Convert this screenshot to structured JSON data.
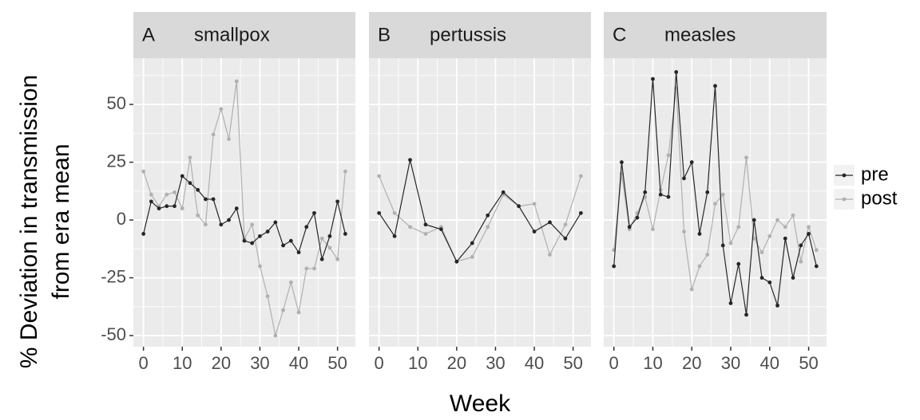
{
  "chart_data": [
    {
      "type": "line",
      "panel_label": "A",
      "title": "smallpox",
      "x": [
        0,
        2,
        4,
        6,
        8,
        10,
        12,
        14,
        16,
        18,
        20,
        22,
        24,
        26,
        28,
        30,
        32,
        34,
        36,
        38,
        40,
        42,
        44,
        46,
        48,
        50,
        52
      ],
      "series": [
        {
          "name": "pre",
          "color": "#262626",
          "values": [
            -6,
            8,
            5,
            6,
            6,
            19,
            16,
            13,
            9,
            9,
            -2,
            0,
            5,
            -9,
            -10,
            -7,
            -5,
            -1,
            -11,
            -9,
            -14,
            -3,
            3,
            -17,
            -7,
            8,
            -6
          ]
        },
        {
          "name": "post",
          "color": "#b0b0b0",
          "values": [
            21,
            11,
            6,
            11,
            12,
            5,
            27,
            2,
            -2,
            37,
            48,
            35,
            60,
            -8,
            -2,
            -20,
            -33,
            -50,
            -39,
            -27,
            -40,
            -21,
            -21,
            -8,
            -12,
            -17,
            21
          ]
        }
      ],
      "xlim": [
        -2.6,
        54.6
      ],
      "ylim": [
        -54.8,
        70
      ],
      "xticks": [
        0,
        10,
        20,
        30,
        40,
        50
      ],
      "yticks": [
        -50,
        -25,
        0,
        25,
        50
      ],
      "grid": true
    },
    {
      "type": "line",
      "panel_label": "B",
      "title": "pertussis",
      "x": [
        0,
        4,
        8,
        12,
        16,
        20,
        24,
        28,
        32,
        36,
        40,
        44,
        48,
        52
      ],
      "series": [
        {
          "name": "pre",
          "color": "#262626",
          "values": [
            3,
            -7,
            26,
            -2,
            -4,
            -18,
            -10,
            2,
            12,
            6,
            -5,
            -1,
            -8,
            3
          ]
        },
        {
          "name": "post",
          "color": "#b0b0b0",
          "values": [
            19,
            3,
            -3,
            -6,
            -3,
            -18,
            -16,
            -3,
            11,
            6,
            7,
            -15,
            -2,
            19
          ]
        }
      ],
      "xlim": [
        -2.6,
        54.6
      ],
      "ylim": [
        -54.8,
        70
      ],
      "xticks": [
        0,
        10,
        20,
        30,
        40,
        50
      ],
      "yticks": [
        -50,
        -25,
        0,
        25,
        50
      ],
      "grid": true
    },
    {
      "type": "line",
      "panel_label": "C",
      "title": "measles",
      "x": [
        0,
        2,
        4,
        6,
        8,
        10,
        12,
        14,
        16,
        18,
        20,
        22,
        24,
        26,
        28,
        30,
        32,
        34,
        36,
        38,
        40,
        42,
        44,
        46,
        48,
        50,
        52
      ],
      "series": [
        {
          "name": "pre",
          "color": "#262626",
          "values": [
            -20,
            25,
            -3,
            1,
            12,
            61,
            11,
            10,
            64,
            18,
            25,
            -6,
            12,
            58,
            -11,
            -36,
            -19,
            -41,
            0,
            -25,
            -27,
            -37,
            -8,
            -25,
            -11,
            -6,
            -20
          ]
        },
        {
          "name": "post",
          "color": "#b0b0b0",
          "values": [
            -13,
            20,
            -4,
            3,
            10,
            -4,
            13,
            28,
            57,
            -5,
            -30,
            -20,
            -15,
            7,
            11,
            -10,
            -3,
            27,
            -8,
            -14,
            -7,
            0,
            -3,
            2,
            -18,
            -3,
            -13
          ]
        }
      ],
      "xlim": [
        -2.6,
        54.6
      ],
      "ylim": [
        -54.8,
        70
      ],
      "xticks": [
        0,
        10,
        20,
        30,
        40,
        50
      ],
      "yticks": [
        -50,
        -25,
        0,
        25,
        50
      ],
      "grid": true
    }
  ],
  "x_label": "Week",
  "y_label": [
    "% Deviation in transmission",
    "from era mean"
  ]
}
